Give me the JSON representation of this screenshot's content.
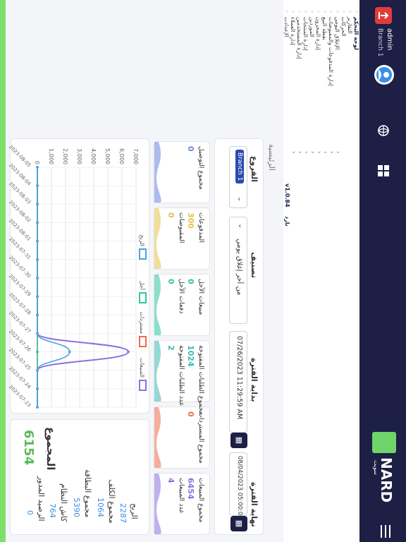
{
  "topbar": {
    "user_name": "admin",
    "branch": "Branch 1",
    "brand": "NARD",
    "brand_sub": "سويت"
  },
  "sidebar": {
    "items": [
      {
        "label": "لوحة التحكم",
        "icon": "home-icon"
      },
      {
        "label": "التقارير",
        "icon": "report-icon"
      },
      {
        "label": "الحركات",
        "icon": "dollar-icon"
      },
      {
        "label": "الإغلاق اليومي",
        "icon": "clock-icon"
      },
      {
        "label": "إدارة المدفوعات والمقبوضات",
        "icon": "payments-icon"
      },
      {
        "label": "نقطة البيع",
        "icon": "pos-icon"
      },
      {
        "label": "إدارة المخزون",
        "icon": "inventory-icon"
      },
      {
        "label": "الموردين",
        "icon": "suppliers-icon"
      },
      {
        "label": "إدارة المنتجات",
        "icon": "products-icon"
      },
      {
        "label": "إدارة المستخدمين",
        "icon": "users-icon"
      },
      {
        "label": "إدارة العملاء",
        "icon": "customers-icon"
      },
      {
        "label": "الإعدادت",
        "icon": "settings-icon"
      }
    ],
    "version": "v1.0.84",
    "version_label": "نارد"
  },
  "breadcrumb": "الرئيسية",
  "filters": {
    "branches_label": "الفروع",
    "branch_chip": "Branch 1",
    "classification_label": "تصنيف",
    "classification_value": "من آخر إغلاق يومي",
    "start_label": "بداية الفترة",
    "start_value": "07/26/2023 11:29:59 AM",
    "end_label": "نهاية الفترة",
    "end_value": "08/04/2023 05:00:05 PM"
  },
  "stats": [
    {
      "t1": "مجموع المبيعات",
      "v1": "6454",
      "t2": "عدد المبيعات",
      "v2": "4",
      "color": "#8c6fe0"
    },
    {
      "t1": "مجموع المستردات",
      "v1": "0",
      "color": "#f06a4a"
    },
    {
      "t1": "مجموع الطلبات المفتوحة",
      "v1": "1024",
      "t2": "عدد الطلبات المفتوحة",
      "v2": "2",
      "color": "#3fb8b0"
    },
    {
      "t1": "مبيعات الآجل",
      "v1": "0",
      "t2": "دفعات الآجل",
      "v2": "0",
      "color": "#2ec79e"
    },
    {
      "t1": "المدفوعات",
      "v1": "300",
      "t2": "المقبوضات",
      "v2": "0",
      "color": "#e8c24a"
    },
    {
      "t1": "مجموع التوصيل",
      "v1": "0",
      "color": "#6a84e0"
    }
  ],
  "summary": {
    "profit_label": "الربح",
    "profit": "2287",
    "cost_label": "مجموع الكلف",
    "cost": "1064",
    "card_label": "مجموع البطاقة",
    "card": "5390",
    "cash_label": "كاش النظام",
    "cash": "764",
    "debt_label": "الرصيد المدور",
    "debt": "0",
    "total_label": "المجموع",
    "total": "6154"
  },
  "chart_data": {
    "type": "line",
    "legend": [
      "المبيعات",
      "مستردات",
      "آجل",
      "الربح"
    ],
    "colors": [
      "#8c6fe0",
      "#f06a4a",
      "#2ec79e",
      "#4aa3e0"
    ],
    "categories": [
      "2023-07-23",
      "2023-07-24",
      "2023-07-25",
      "2023-07-26",
      "2023-07-27",
      "2023-07-28",
      "2023-07-29",
      "2023-07-30",
      "2023-07-31",
      "2023-08-01",
      "2023-08-02",
      "2023-08-03",
      "2023-08-04",
      "2023-08-05"
    ],
    "y_ticks": [
      "0",
      "1,000",
      "2,000",
      "3,000",
      "4,000",
      "5,000",
      "6,000",
      "7,000"
    ],
    "ylim": [
      0,
      7000
    ],
    "series": [
      {
        "name": "المبيعات",
        "values": [
          0,
          0,
          0,
          6454,
          0,
          0,
          0,
          0,
          0,
          0,
          0,
          0,
          0,
          0
        ]
      },
      {
        "name": "مستردات",
        "values": [
          0,
          0,
          0,
          0,
          0,
          0,
          0,
          0,
          0,
          0,
          0,
          0,
          0,
          0
        ]
      },
      {
        "name": "آجل",
        "values": [
          0,
          0,
          0,
          0,
          0,
          0,
          0,
          0,
          0,
          0,
          0,
          0,
          0,
          0
        ]
      },
      {
        "name": "الربح",
        "values": [
          0,
          0,
          0,
          2287,
          0,
          0,
          0,
          0,
          0,
          0,
          0,
          0,
          0,
          0
        ]
      }
    ]
  }
}
